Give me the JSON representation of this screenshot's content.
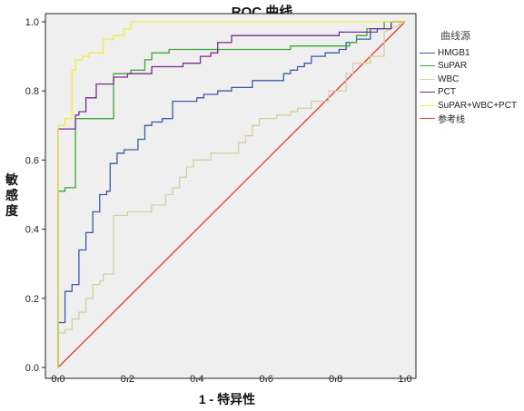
{
  "chart_data": {
    "type": "line",
    "title": "ROC 曲线",
    "xlabel": "1 - 特异性",
    "ylabel": "敏感度",
    "xlim": [
      0,
      1
    ],
    "ylim": [
      0,
      1
    ],
    "ticks": [
      "0.0",
      "0.2",
      "0.4",
      "0.6",
      "0.8",
      "1.0"
    ],
    "grid": false,
    "legend_title": "曲线源",
    "legend_position": "right",
    "series": [
      {
        "name": "HMGB1",
        "color": "#3a5aa8",
        "x": [
          0,
          0,
          0.02,
          0.02,
          0.04,
          0.04,
          0.06,
          0.06,
          0.08,
          0.08,
          0.1,
          0.1,
          0.12,
          0.12,
          0.14,
          0.14,
          0.15,
          0.15,
          0.17,
          0.17,
          0.19,
          0.19,
          0.23,
          0.23,
          0.25,
          0.25,
          0.27,
          0.27,
          0.3,
          0.3,
          0.33,
          0.33,
          0.4,
          0.4,
          0.42,
          0.42,
          0.46,
          0.46,
          0.5,
          0.5,
          0.52,
          0.52,
          0.56,
          0.56,
          0.6,
          0.6,
          0.65,
          0.65,
          0.67,
          0.67,
          0.69,
          0.69,
          0.71,
          0.71,
          0.73,
          0.73,
          0.77,
          0.77,
          0.81,
          0.81,
          0.83,
          0.83,
          0.86,
          0.86,
          0.9,
          0.9,
          0.92,
          0.92,
          0.96,
          0.96,
          1
        ],
        "y": [
          0,
          0.13,
          0.13,
          0.22,
          0.22,
          0.24,
          0.24,
          0.34,
          0.34,
          0.39,
          0.39,
          0.45,
          0.45,
          0.5,
          0.5,
          0.51,
          0.51,
          0.59,
          0.59,
          0.62,
          0.62,
          0.63,
          0.63,
          0.66,
          0.66,
          0.7,
          0.7,
          0.71,
          0.71,
          0.72,
          0.72,
          0.77,
          0.77,
          0.78,
          0.78,
          0.79,
          0.79,
          0.8,
          0.8,
          0.81,
          0.81,
          0.81,
          0.81,
          0.83,
          0.83,
          0.83,
          0.83,
          0.85,
          0.85,
          0.86,
          0.86,
          0.87,
          0.87,
          0.88,
          0.88,
          0.9,
          0.9,
          0.91,
          0.91,
          0.92,
          0.92,
          0.94,
          0.94,
          0.95,
          0.95,
          0.97,
          0.97,
          0.98,
          0.98,
          1,
          1
        ]
      },
      {
        "name": "SuPAR",
        "color": "#3aa637",
        "x": [
          0,
          0,
          0.02,
          0.02,
          0.05,
          0.05,
          0.09,
          0.09,
          0.16,
          0.16,
          0.21,
          0.21,
          0.25,
          0.25,
          0.27,
          0.27,
          0.32,
          0.32,
          0.67,
          0.67,
          0.84,
          0.84,
          0.86,
          0.86,
          0.89,
          0.89,
          0.94,
          0.94,
          0.98,
          1
        ],
        "y": [
          0,
          0.51,
          0.51,
          0.52,
          0.52,
          0.72,
          0.72,
          0.72,
          0.72,
          0.85,
          0.85,
          0.86,
          0.86,
          0.89,
          0.89,
          0.91,
          0.91,
          0.92,
          0.92,
          0.93,
          0.93,
          0.94,
          0.94,
          0.96,
          0.96,
          0.98,
          0.98,
          1,
          1,
          1
        ]
      },
      {
        "name": "WBC",
        "color": "#d6cf9e",
        "x": [
          0,
          0,
          0.02,
          0.02,
          0.04,
          0.04,
          0.06,
          0.06,
          0.08,
          0.08,
          0.1,
          0.1,
          0.12,
          0.12,
          0.13,
          0.13,
          0.16,
          0.16,
          0.2,
          0.2,
          0.27,
          0.27,
          0.31,
          0.31,
          0.33,
          0.33,
          0.35,
          0.35,
          0.37,
          0.37,
          0.39,
          0.39,
          0.44,
          0.44,
          0.52,
          0.52,
          0.54,
          0.54,
          0.56,
          0.56,
          0.58,
          0.58,
          0.63,
          0.63,
          0.67,
          0.67,
          0.69,
          0.69,
          0.73,
          0.73,
          0.78,
          0.78,
          0.83,
          0.83,
          0.85,
          0.85,
          0.9,
          0.9,
          0.94,
          0.94,
          1
        ],
        "y": [
          0,
          0.1,
          0.1,
          0.11,
          0.11,
          0.14,
          0.14,
          0.16,
          0.16,
          0.2,
          0.2,
          0.24,
          0.24,
          0.25,
          0.25,
          0.27,
          0.27,
          0.44,
          0.44,
          0.45,
          0.45,
          0.47,
          0.47,
          0.5,
          0.5,
          0.52,
          0.52,
          0.55,
          0.55,
          0.58,
          0.58,
          0.6,
          0.6,
          0.62,
          0.62,
          0.65,
          0.65,
          0.67,
          0.67,
          0.7,
          0.7,
          0.72,
          0.72,
          0.73,
          0.73,
          0.74,
          0.74,
          0.75,
          0.75,
          0.77,
          0.77,
          0.8,
          0.8,
          0.85,
          0.85,
          0.88,
          0.88,
          0.9,
          0.9,
          0.97,
          1
        ]
      },
      {
        "name": "PCT",
        "color": "#7a2d8c",
        "x": [
          0,
          0,
          0.05,
          0.05,
          0.06,
          0.06,
          0.08,
          0.08,
          0.11,
          0.11,
          0.16,
          0.16,
          0.2,
          0.2,
          0.24,
          0.24,
          0.27,
          0.27,
          0.32,
          0.32,
          0.36,
          0.36,
          0.41,
          0.41,
          0.44,
          0.44,
          0.46,
          0.46,
          0.5,
          0.5,
          0.81,
          0.81,
          0.9,
          0.9,
          0.96,
          0.96,
          1
        ],
        "y": [
          0,
          0.69,
          0.69,
          0.73,
          0.73,
          0.74,
          0.74,
          0.78,
          0.78,
          0.82,
          0.82,
          0.84,
          0.84,
          0.85,
          0.85,
          0.85,
          0.85,
          0.87,
          0.87,
          0.87,
          0.87,
          0.88,
          0.88,
          0.9,
          0.9,
          0.91,
          0.91,
          0.94,
          0.94,
          0.96,
          0.96,
          0.97,
          0.97,
          0.98,
          0.98,
          1,
          1
        ]
      },
      {
        "name": "SuPAR+WBC+PCT",
        "color": "#f2ec3a",
        "x": [
          0,
          0,
          0.02,
          0.02,
          0.04,
          0.04,
          0.05,
          0.05,
          0.07,
          0.07,
          0.09,
          0.09,
          0.13,
          0.13,
          0.16,
          0.16,
          0.19,
          0.19,
          0.21,
          0.21,
          1
        ],
        "y": [
          0,
          0.7,
          0.7,
          0.72,
          0.72,
          0.86,
          0.86,
          0.89,
          0.89,
          0.9,
          0.9,
          0.91,
          0.91,
          0.95,
          0.95,
          0.96,
          0.96,
          0.98,
          0.98,
          1,
          1
        ]
      },
      {
        "name": "参考线",
        "color": "#e03a32",
        "x": [
          0,
          1
        ],
        "y": [
          0,
          1
        ]
      }
    ]
  }
}
